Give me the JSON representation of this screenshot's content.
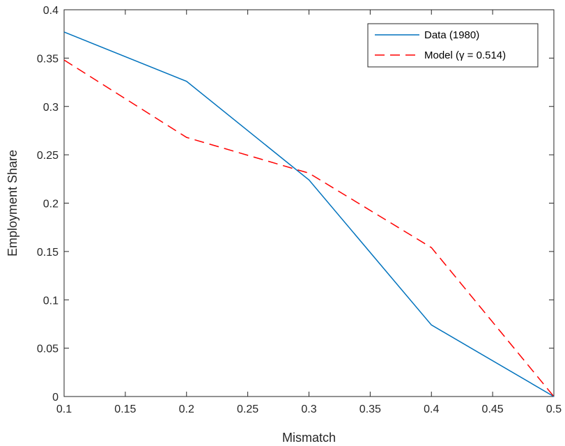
{
  "chart_data": {
    "type": "line",
    "title": "",
    "xlabel": "Mismatch",
    "ylabel": "Employment Share",
    "xlim": [
      0.1,
      0.5
    ],
    "ylim": [
      0,
      0.4
    ],
    "xticks": [
      "0.1",
      "0.15",
      "0.2",
      "0.25",
      "0.3",
      "0.35",
      "0.4",
      "0.45",
      "0.5"
    ],
    "yticks": [
      "0",
      "0.05",
      "0.1",
      "0.15",
      "0.2",
      "0.25",
      "0.3",
      "0.35",
      "0.4"
    ],
    "grid": false,
    "legend_position": "top-right",
    "series": [
      {
        "name": "Data (1980)",
        "style": "solid",
        "color": "#0072BD",
        "x": [
          0.1,
          0.2,
          0.3,
          0.4,
          0.5
        ],
        "y": [
          0.377,
          0.326,
          0.224,
          0.074,
          0.0
        ]
      },
      {
        "name": "Model (γ = 0.514)",
        "style": "dashed",
        "color": "#FF0000",
        "x": [
          0.1,
          0.2,
          0.3,
          0.4,
          0.5
        ],
        "y": [
          0.348,
          0.268,
          0.231,
          0.154,
          0.0
        ]
      }
    ]
  }
}
